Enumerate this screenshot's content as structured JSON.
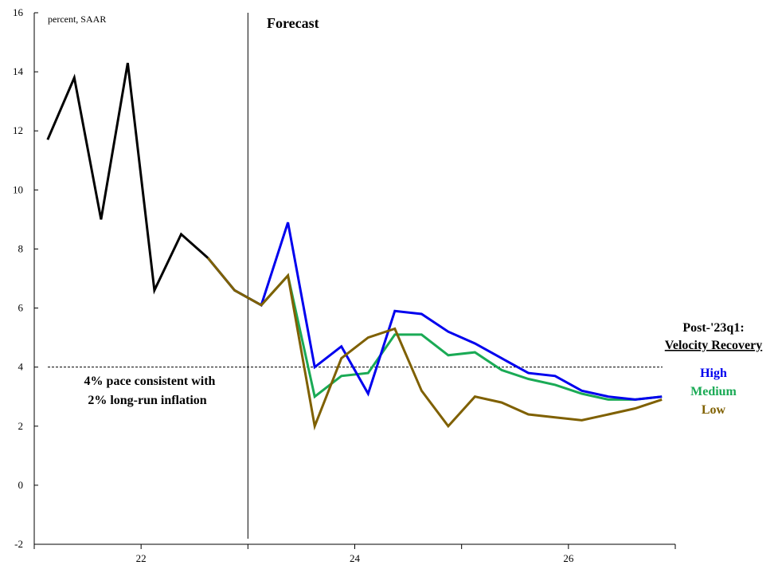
{
  "chart_data": {
    "type": "line",
    "unit_label": "percent, SAAR",
    "forecast_label": "Forecast",
    "reference": {
      "value": 4,
      "label_line1": "4% pace consistent with",
      "label_line2": "2% long-run inflation"
    },
    "legend": {
      "title_line1": "Post-'23q1:",
      "title_line2": "Velocity Recovery",
      "position": "right"
    },
    "ylim": [
      -2,
      16
    ],
    "yticks": [
      -2,
      0,
      2,
      4,
      6,
      8,
      10,
      12,
      14,
      16
    ],
    "xticks": [
      {
        "pos": 3.5,
        "label": "22"
      },
      {
        "pos": 11.5,
        "label": "24"
      },
      {
        "pos": 19.5,
        "label": "26"
      }
    ],
    "xlim": [
      -0.5,
      23.5
    ],
    "forecast_start": 7.5,
    "history": {
      "color": "#000000",
      "x": [
        0,
        1,
        2,
        3,
        4,
        5,
        6,
        7,
        8
      ],
      "y": [
        11.7,
        13.8,
        9.0,
        14.3,
        6.6,
        8.5,
        7.7,
        6.6,
        6.1
      ]
    },
    "series": [
      {
        "name": "High",
        "color": "#0000ee",
        "x": [
          6,
          7,
          8,
          9,
          10,
          11,
          12,
          13,
          14,
          15,
          16,
          17,
          18,
          19,
          20,
          21,
          22,
          23
        ],
        "y": [
          7.7,
          6.6,
          6.1,
          8.9,
          4.0,
          4.7,
          3.1,
          5.9,
          5.8,
          5.2,
          4.8,
          4.3,
          3.8,
          3.7,
          3.2,
          3.0,
          2.9,
          3.0
        ]
      },
      {
        "name": "Medium",
        "color": "#1aaa55",
        "x": [
          6,
          7,
          8,
          9,
          10,
          11,
          12,
          13,
          14,
          15,
          16,
          17,
          18,
          19,
          20,
          21,
          22,
          23
        ],
        "y": [
          7.7,
          6.6,
          6.1,
          7.1,
          3.0,
          3.7,
          3.8,
          5.1,
          5.1,
          4.4,
          4.5,
          3.9,
          3.6,
          3.4,
          3.1,
          2.9,
          2.9,
          3.0
        ]
      },
      {
        "name": "Low",
        "color": "#7f6000",
        "x": [
          6,
          7,
          8,
          9,
          10,
          11,
          12,
          13,
          14,
          15,
          16,
          17,
          18,
          19,
          20,
          21,
          22,
          23
        ],
        "y": [
          7.7,
          6.6,
          6.1,
          7.1,
          2.0,
          4.3,
          5.0,
          5.3,
          3.2,
          2.0,
          3.0,
          2.8,
          2.4,
          2.3,
          2.2,
          2.4,
          2.6,
          2.9
        ]
      }
    ]
  }
}
